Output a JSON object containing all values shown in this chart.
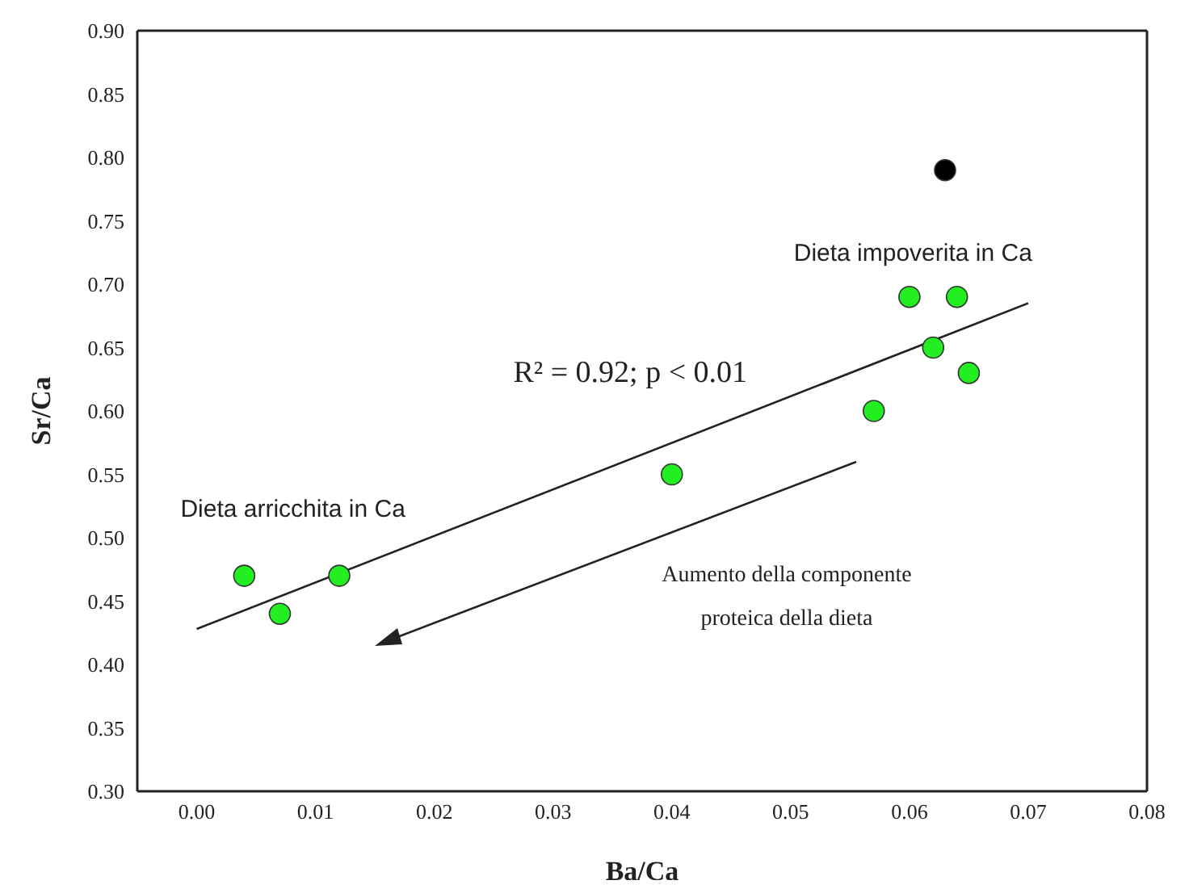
{
  "chart_data": {
    "type": "scatter",
    "xlabel": "Ba/Ca",
    "ylabel": "Sr/Ca",
    "xlim": [
      -0.005,
      0.08
    ],
    "xticks": [
      {
        "value": 0,
        "label": "0.00"
      },
      {
        "value": 0.01,
        "label": "0.01"
      },
      {
        "value": 0.02,
        "label": "0.02"
      },
      {
        "value": 0.03,
        "label": "0.03"
      },
      {
        "value": 0.04,
        "label": "0.04"
      },
      {
        "value": 0.05,
        "label": "0.05"
      },
      {
        "value": 0.06,
        "label": "0.06"
      },
      {
        "value": 0.07,
        "label": "0.07"
      },
      {
        "value": 0.08,
        "label": "0.08"
      }
    ],
    "ylim": [
      0.3,
      0.9
    ],
    "yticks": [
      {
        "value": 0.3,
        "label": "0.30"
      },
      {
        "value": 0.35,
        "label": "0.35"
      },
      {
        "value": 0.4,
        "label": "0.40"
      },
      {
        "value": 0.45,
        "label": "0.45"
      },
      {
        "value": 0.5,
        "label": "0.50"
      },
      {
        "value": 0.55,
        "label": "0.55"
      },
      {
        "value": 0.6,
        "label": "0.60"
      },
      {
        "value": 0.65,
        "label": "0.65"
      },
      {
        "value": 0.7,
        "label": "0.70"
      },
      {
        "value": 0.75,
        "label": "0.75"
      },
      {
        "value": 0.8,
        "label": "0.80"
      },
      {
        "value": 0.85,
        "label": "0.85"
      },
      {
        "value": 0.9,
        "label": "0.90"
      }
    ],
    "grid": false,
    "marker": "circle",
    "series": [
      {
        "color": "#22ee22",
        "x": [
          0.004,
          0.007,
          0.012,
          0.04,
          0.057,
          0.06,
          0.062,
          0.064,
          0.065
        ],
        "values": [
          0.47,
          0.44,
          0.47,
          0.55,
          0.6,
          0.69,
          0.65,
          0.69,
          0.63
        ]
      },
      {
        "color": "#000000",
        "x": [
          0.063
        ],
        "values": [
          0.79
        ]
      },
      {
        "type": "line",
        "color": "#222222",
        "marker": "none",
        "x": [
          0,
          0.07
        ],
        "values": [
          0.428,
          0.685
        ]
      }
    ],
    "annotations": [
      "Dieta impoverita in Ca",
      "Dieta arricchita in Ca",
      "R² = 0.92; p < 0.01",
      "Aumento della componente\nproteica della dieta"
    ]
  }
}
